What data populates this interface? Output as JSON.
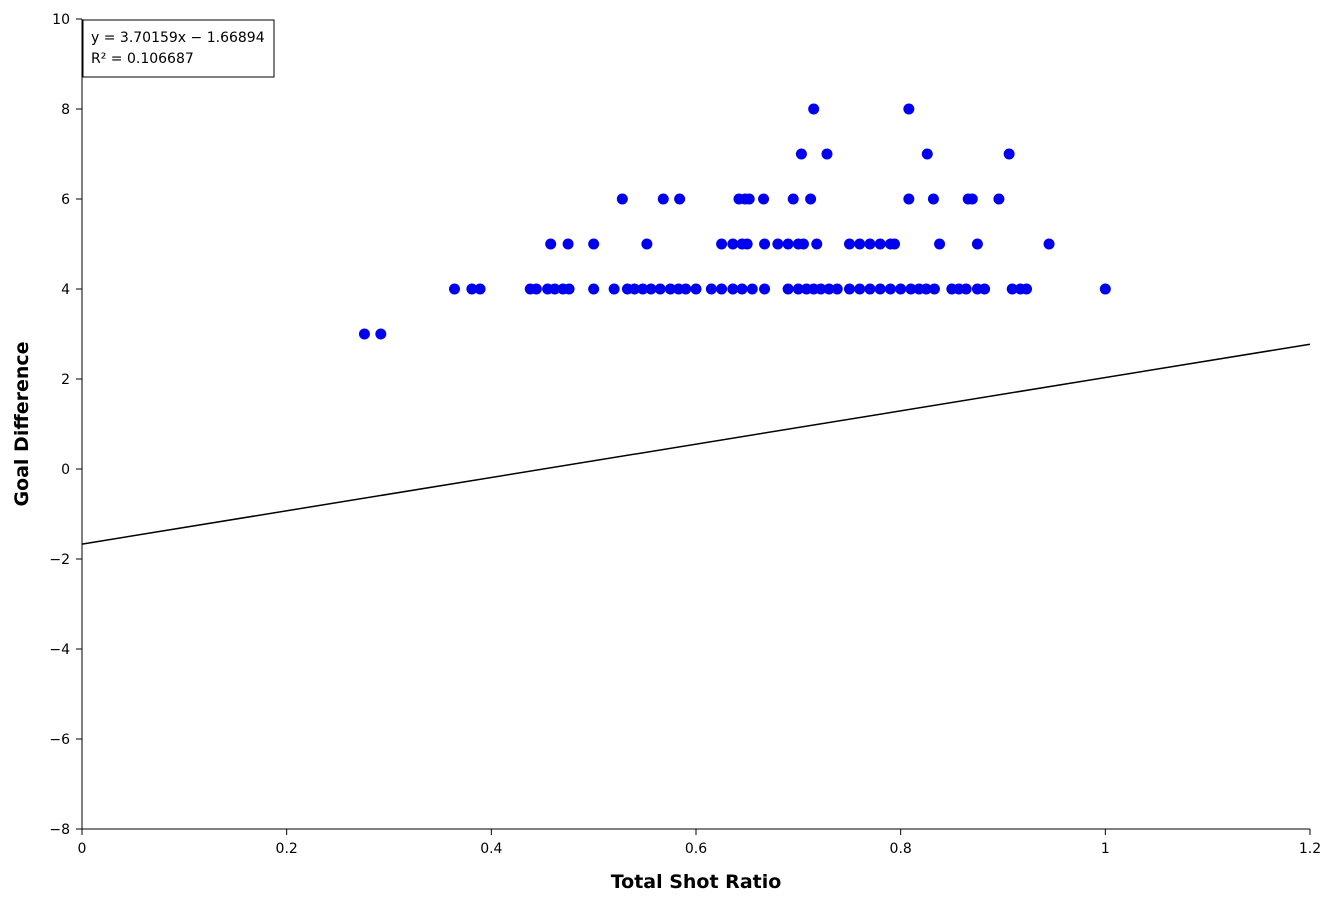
{
  "chart_data": {
    "type": "scatter",
    "title": "",
    "xlabel": "Total Shot Ratio",
    "ylabel": "Goal Difference",
    "xlim": [
      0,
      1.2
    ],
    "ylim": [
      -8,
      10
    ],
    "x_ticks": [
      "0",
      "0.2",
      "0.4",
      "0.6",
      "0.8",
      "1",
      "1.2"
    ],
    "y_ticks": [
      "10",
      "8",
      "6",
      "4",
      "2",
      "0",
      "−2",
      "−4",
      "−6",
      "−8"
    ],
    "x_tick_values": [
      0,
      0.2,
      0.4,
      0.6,
      0.8,
      1.0,
      1.2
    ],
    "y_tick_values": [
      10,
      8,
      6,
      4,
      2,
      0,
      -2,
      -4,
      -6,
      -8
    ],
    "grid": false,
    "point_color": "#0000ee",
    "trendline": {
      "equation": "y = 3.70159x − 1.66894",
      "r_squared": "R² = 0.106687",
      "slope": 3.70159,
      "intercept": -1.66894,
      "color": "#000000"
    },
    "series": [
      {
        "points": [
          [
            0.715,
            8
          ],
          [
            0.808,
            8
          ],
          [
            0.703,
            7
          ],
          [
            0.728,
            7
          ],
          [
            0.826,
            7
          ],
          [
            0.906,
            7
          ],
          [
            0.528,
            6
          ],
          [
            0.568,
            6
          ],
          [
            0.584,
            6
          ],
          [
            0.642,
            6
          ],
          [
            0.648,
            6
          ],
          [
            0.652,
            6
          ],
          [
            0.666,
            6
          ],
          [
            0.695,
            6
          ],
          [
            0.712,
            6
          ],
          [
            0.808,
            6
          ],
          [
            0.832,
            6
          ],
          [
            0.866,
            6
          ],
          [
            0.87,
            6
          ],
          [
            0.896,
            6
          ],
          [
            0.458,
            5
          ],
          [
            0.475,
            5
          ],
          [
            0.5,
            5
          ],
          [
            0.552,
            5
          ],
          [
            0.625,
            5
          ],
          [
            0.636,
            5
          ],
          [
            0.645,
            5
          ],
          [
            0.65,
            5
          ],
          [
            0.667,
            5
          ],
          [
            0.68,
            5
          ],
          [
            0.69,
            5
          ],
          [
            0.7,
            5
          ],
          [
            0.705,
            5
          ],
          [
            0.718,
            5
          ],
          [
            0.75,
            5
          ],
          [
            0.76,
            5
          ],
          [
            0.77,
            5
          ],
          [
            0.78,
            5
          ],
          [
            0.79,
            5
          ],
          [
            0.794,
            5
          ],
          [
            0.838,
            5
          ],
          [
            0.875,
            5
          ],
          [
            0.945,
            5
          ],
          [
            0.364,
            4
          ],
          [
            0.381,
            4
          ],
          [
            0.389,
            4
          ],
          [
            0.438,
            4
          ],
          [
            0.444,
            4
          ],
          [
            0.455,
            4
          ],
          [
            0.462,
            4
          ],
          [
            0.47,
            4
          ],
          [
            0.476,
            4
          ],
          [
            0.5,
            4
          ],
          [
            0.52,
            4
          ],
          [
            0.533,
            4
          ],
          [
            0.54,
            4
          ],
          [
            0.548,
            4
          ],
          [
            0.556,
            4
          ],
          [
            0.565,
            4
          ],
          [
            0.575,
            4
          ],
          [
            0.583,
            4
          ],
          [
            0.59,
            4
          ],
          [
            0.6,
            4
          ],
          [
            0.615,
            4
          ],
          [
            0.625,
            4
          ],
          [
            0.636,
            4
          ],
          [
            0.645,
            4
          ],
          [
            0.655,
            4
          ],
          [
            0.667,
            4
          ],
          [
            0.69,
            4
          ],
          [
            0.7,
            4
          ],
          [
            0.708,
            4
          ],
          [
            0.715,
            4
          ],
          [
            0.722,
            4
          ],
          [
            0.73,
            4
          ],
          [
            0.738,
            4
          ],
          [
            0.75,
            4
          ],
          [
            0.76,
            4
          ],
          [
            0.77,
            4
          ],
          [
            0.78,
            4
          ],
          [
            0.79,
            4
          ],
          [
            0.8,
            4
          ],
          [
            0.81,
            4
          ],
          [
            0.818,
            4
          ],
          [
            0.825,
            4
          ],
          [
            0.833,
            4
          ],
          [
            0.85,
            4
          ],
          [
            0.857,
            4
          ],
          [
            0.864,
            4
          ],
          [
            0.875,
            4
          ],
          [
            0.882,
            4
          ],
          [
            0.909,
            4
          ],
          [
            0.917,
            4
          ],
          [
            0.923,
            4
          ],
          [
            1.0,
            4
          ],
          [
            0.276,
            3
          ],
          [
            0.292,
            3
          ]
        ]
      }
    ]
  }
}
